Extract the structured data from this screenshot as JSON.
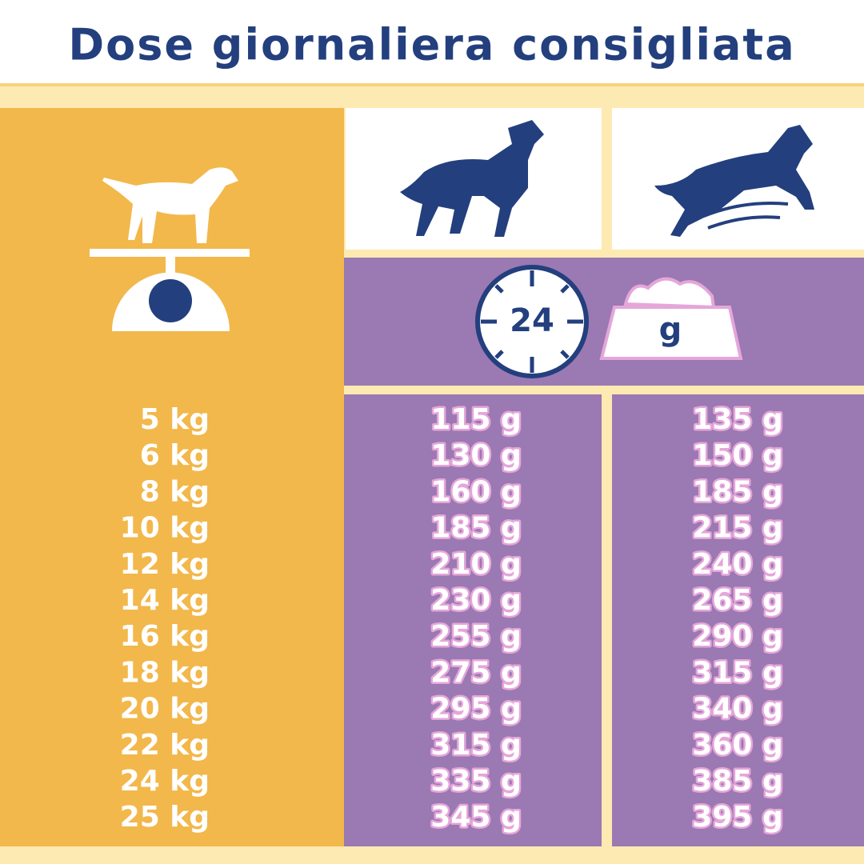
{
  "title": "Dose giornaliera consigliata",
  "icons": {
    "clock": "24",
    "bowl": "g"
  },
  "table": {
    "rows": [
      [
        "5 kg",
        "115 g",
        "135 g"
      ],
      [
        "6 kg",
        "130 g",
        "150 g"
      ],
      [
        "8 kg",
        "160 g",
        "185 g"
      ],
      [
        "10 kg",
        "185 g",
        "215 g"
      ],
      [
        "12 kg",
        "210 g",
        "240 g"
      ],
      [
        "14 kg",
        "230 g",
        "265 g"
      ],
      [
        "16 kg",
        "255 g",
        "290 g"
      ],
      [
        "18 kg",
        "275 g",
        "315 g"
      ],
      [
        "20 kg",
        "295 g",
        "340 g"
      ],
      [
        "22 kg",
        "315 g",
        "360 g"
      ],
      [
        "24 kg",
        "335 g",
        "385 g"
      ],
      [
        "25 kg",
        "345 g",
        "395 g"
      ]
    ]
  }
}
